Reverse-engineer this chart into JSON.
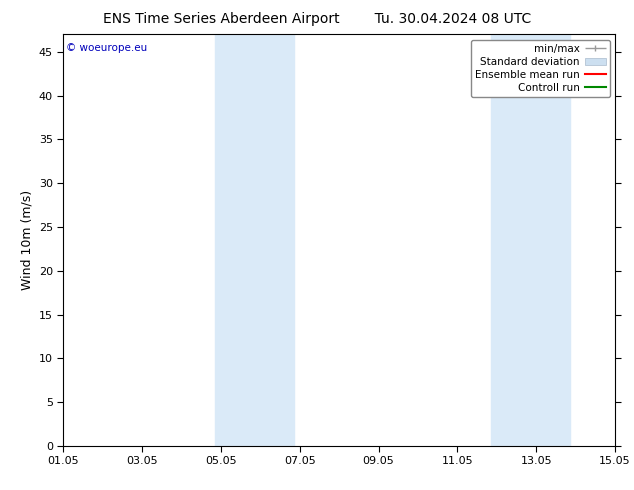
{
  "title_left": "ENS Time Series Aberdeen Airport",
  "title_right": "Tu. 30.04.2024 08 UTC",
  "ylabel": "Wind 10m (m/s)",
  "watermark": "© woeurope.eu",
  "watermark_color": "#0000bb",
  "ylim": [
    0,
    47
  ],
  "yticks": [
    0,
    5,
    10,
    15,
    20,
    25,
    30,
    35,
    40,
    45
  ],
  "xtick_labels": [
    "01.05",
    "03.05",
    "05.05",
    "07.05",
    "09.05",
    "11.05",
    "13.05",
    "15.05"
  ],
  "xtick_positions": [
    0,
    2,
    4,
    6,
    8,
    10,
    12,
    14
  ],
  "x_total_days": 14,
  "shaded_regions": [
    {
      "x_start": 3.85,
      "x_end": 5.85,
      "color": "#daeaf8"
    },
    {
      "x_start": 10.85,
      "x_end": 12.85,
      "color": "#daeaf8"
    }
  ],
  "background_color": "#ffffff",
  "plot_bg_color": "#ffffff",
  "legend_items": [
    {
      "label": "min/max",
      "color": "#999999",
      "style": "line_with_caps"
    },
    {
      "label": "Standard deviation",
      "color": "#ccdff0",
      "style": "filled_box"
    },
    {
      "label": "Ensemble mean run",
      "color": "#ff0000",
      "style": "line"
    },
    {
      "label": "Controll run",
      "color": "#008800",
      "style": "line"
    }
  ],
  "title_fontsize": 10,
  "tick_fontsize": 8,
  "legend_fontsize": 7.5,
  "ylabel_fontsize": 9
}
